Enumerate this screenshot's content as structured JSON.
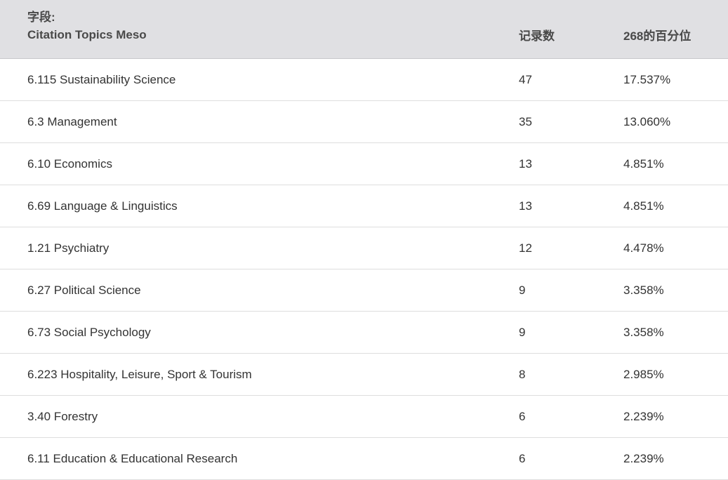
{
  "header": {
    "field_label": "字段:",
    "field_name": "Citation Topics Meso",
    "count_label": "记录数",
    "percent_label": "268的百分位"
  },
  "rows": [
    {
      "name": "6.115 Sustainability Science",
      "count": "47",
      "percent": "17.537%"
    },
    {
      "name": "6.3 Management",
      "count": "35",
      "percent": "13.060%"
    },
    {
      "name": "6.10 Economics",
      "count": "13",
      "percent": "4.851%"
    },
    {
      "name": "6.69 Language & Linguistics",
      "count": "13",
      "percent": "4.851%"
    },
    {
      "name": "1.21 Psychiatry",
      "count": "12",
      "percent": "4.478%"
    },
    {
      "name": "6.27 Political Science",
      "count": "9",
      "percent": "3.358%"
    },
    {
      "name": "6.73 Social Psychology",
      "count": "9",
      "percent": "3.358%"
    },
    {
      "name": "6.223 Hospitality, Leisure, Sport & Tourism",
      "count": "8",
      "percent": "2.985%"
    },
    {
      "name": "3.40 Forestry",
      "count": "6",
      "percent": "2.239%"
    },
    {
      "name": "6.11 Education & Educational Research",
      "count": "6",
      "percent": "2.239%"
    }
  ]
}
